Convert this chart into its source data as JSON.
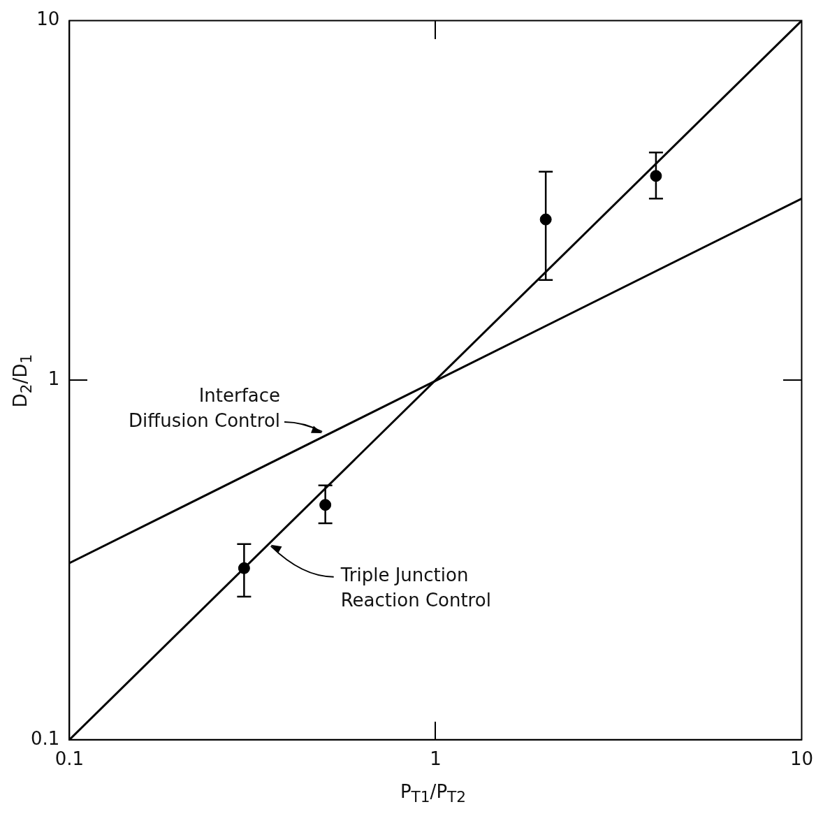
{
  "chart_data": {
    "type": "scatter",
    "xlabel": "P$_{T1}$/P$_{T2}$",
    "ylabel": "D$_{2}$/D$_{1}$",
    "log": "xy",
    "xlim": [
      0.1,
      10
    ],
    "ylim": [
      0.1,
      10
    ],
    "xticks": [
      0.1,
      1,
      10
    ],
    "yticks": [
      0.1,
      1,
      10
    ],
    "grid": false,
    "legend": false,
    "series": [
      {
        "color": "#000000",
        "marker": "circle",
        "x": [
          0.3,
          0.5,
          2.0,
          4.0
        ],
        "values": [
          0.3,
          0.45,
          2.8,
          3.7
        ],
        "errors": [
          [
            0.25,
            0.35
          ],
          [
            0.4,
            0.51
          ],
          [
            1.9,
            3.8
          ],
          [
            3.2,
            4.3
          ]
        ]
      },
      {
        "type": "line",
        "color": "#000000",
        "marker": "none",
        "x": [
          0.1,
          10
        ],
        "values": [
          0.1,
          10
        ]
      },
      {
        "type": "line",
        "color": "#000000",
        "marker": "none",
        "x": [
          0.1,
          10
        ],
        "values": [
          0.31,
          3.2
        ]
      }
    ],
    "annotations": [
      {
        "text": "Interface\nDiffusion Control",
        "x": 0.49,
        "y": 0.7
      },
      {
        "text": "Triple Junction\nReaction Control",
        "x": 0.355,
        "y": 0.355
      }
    ]
  }
}
